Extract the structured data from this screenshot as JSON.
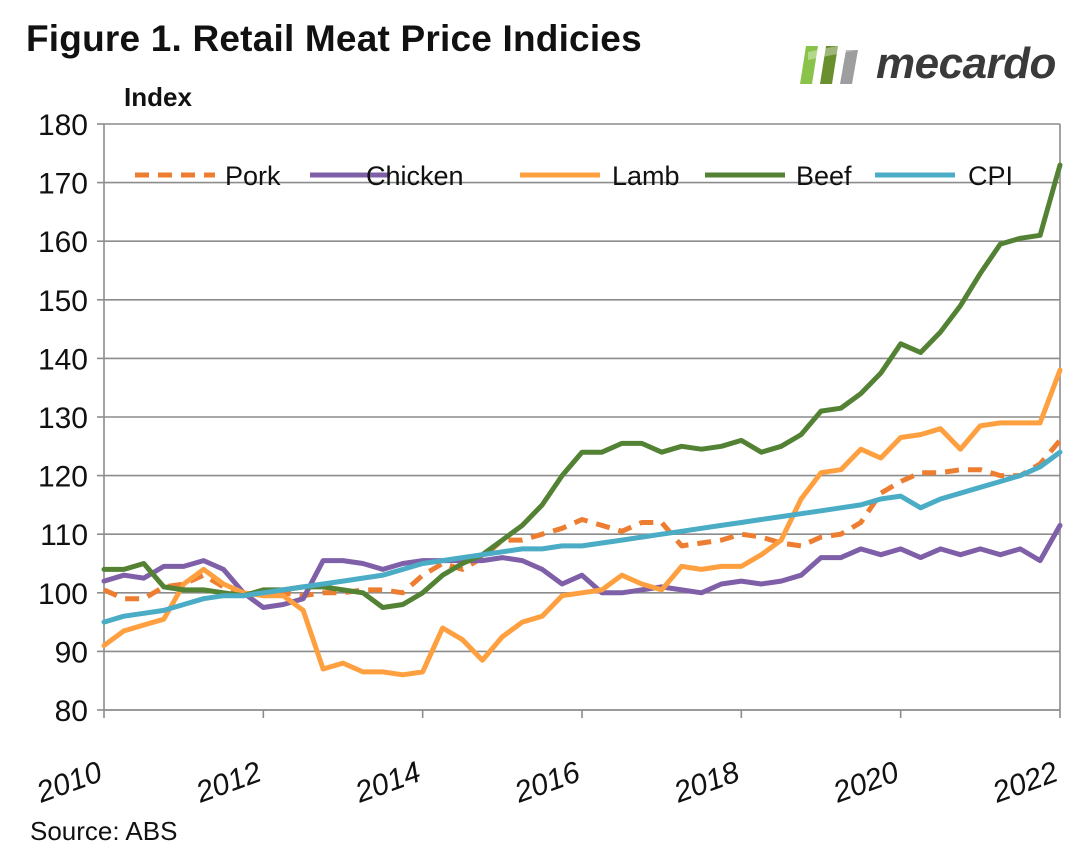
{
  "header": {
    "title": "Figure 1. Retail Meat Price Indicies"
  },
  "logo": {
    "text": "mecardo",
    "colors": [
      "#8bc34a",
      "#6a8f2f",
      "#9e9e9e"
    ]
  },
  "footer": {
    "source": "Source: ABS"
  },
  "chart_data": {
    "type": "line",
    "title": "Figure 1. Retail Meat Price Indicies",
    "ylabel": "Index",
    "xlabel": "",
    "ylim": [
      80,
      180
    ],
    "yticks": [
      "80",
      "90",
      "100",
      "110",
      "120",
      "130",
      "140",
      "150",
      "160",
      "170",
      "180"
    ],
    "xlim": [
      2010,
      2022
    ],
    "xticks": [
      "2010",
      "2012",
      "2014",
      "2016",
      "2018",
      "2020",
      "2022"
    ],
    "grid": "horizontal",
    "legend_position": "top",
    "series": [
      {
        "name": "Pork",
        "color": "#ed7d31",
        "dash": true,
        "x": [
          2010,
          2010.25,
          2010.5,
          2010.75,
          2011,
          2011.25,
          2011.5,
          2011.75,
          2012,
          2012.25,
          2012.5,
          2012.75,
          2013,
          2013.25,
          2013.5,
          2013.75,
          2014,
          2014.25,
          2014.5,
          2014.75,
          2015,
          2015.25,
          2015.5,
          2015.75,
          2016,
          2016.25,
          2016.5,
          2016.75,
          2017,
          2017.25,
          2017.5,
          2017.75,
          2018,
          2018.25,
          2018.5,
          2018.75,
          2019,
          2019.25,
          2019.5,
          2019.75,
          2020,
          2020.25,
          2020.5,
          2020.75,
          2021,
          2021.25,
          2021.5,
          2021.75,
          2022
        ],
        "values": [
          100.5,
          99,
          99,
          101,
          101.5,
          103,
          101,
          100,
          100,
          100,
          99.5,
          100,
          100,
          100.5,
          100.5,
          100,
          103,
          105,
          104,
          106,
          109,
          109,
          110,
          111,
          112.5,
          111.5,
          110.5,
          112,
          112,
          108,
          108.5,
          109,
          110,
          109.5,
          108.5,
          108,
          109.5,
          110,
          112,
          117,
          119,
          120.5,
          120.5,
          121,
          121,
          120,
          120,
          122,
          126
        ]
      },
      {
        "name": "Chicken",
        "color": "#7f60a8",
        "dash": false,
        "x": [
          2010,
          2010.25,
          2010.5,
          2010.75,
          2011,
          2011.25,
          2011.5,
          2011.75,
          2012,
          2012.25,
          2012.5,
          2012.75,
          2013,
          2013.25,
          2013.5,
          2013.75,
          2014,
          2014.25,
          2014.5,
          2014.75,
          2015,
          2015.25,
          2015.5,
          2015.75,
          2016,
          2016.25,
          2016.5,
          2016.75,
          2017,
          2017.25,
          2017.5,
          2017.75,
          2018,
          2018.25,
          2018.5,
          2018.75,
          2019,
          2019.25,
          2019.5,
          2019.75,
          2020,
          2020.25,
          2020.5,
          2020.75,
          2021,
          2021.25,
          2021.5,
          2021.75,
          2022
        ],
        "values": [
          102,
          103,
          102.5,
          104.5,
          104.5,
          105.5,
          104,
          100,
          97.5,
          98,
          99,
          105.5,
          105.5,
          105,
          104,
          105,
          105.5,
          105.5,
          105.5,
          105.5,
          106,
          105.5,
          104,
          101.5,
          103,
          100,
          100,
          100.5,
          101,
          100.5,
          100,
          101.5,
          102,
          101.5,
          102,
          103,
          106,
          106,
          107.5,
          106.5,
          107.5,
          106,
          107.5,
          106.5,
          107.5,
          106.5,
          107.5,
          105.5,
          111.5
        ]
      },
      {
        "name": "Lamb",
        "color": "#ffa040",
        "dash": false,
        "x": [
          2010,
          2010.25,
          2010.5,
          2010.75,
          2011,
          2011.25,
          2011.5,
          2011.75,
          2012,
          2012.25,
          2012.5,
          2012.75,
          2013,
          2013.25,
          2013.5,
          2013.75,
          2014,
          2014.25,
          2014.5,
          2014.75,
          2015,
          2015.25,
          2015.5,
          2015.75,
          2016,
          2016.25,
          2016.5,
          2016.75,
          2017,
          2017.25,
          2017.5,
          2017.75,
          2018,
          2018.25,
          2018.5,
          2018.75,
          2019,
          2019.25,
          2019.5,
          2019.75,
          2020,
          2020.25,
          2020.5,
          2020.75,
          2021,
          2021.25,
          2021.5,
          2021.75,
          2022
        ],
        "values": [
          91,
          93.5,
          94.5,
          95.5,
          101.5,
          104,
          101.5,
          100,
          99.5,
          99.5,
          97,
          87,
          88,
          86.5,
          86.5,
          86,
          86.5,
          94,
          92,
          88.5,
          92.5,
          95,
          96,
          99.5,
          100,
          100.5,
          103,
          101.5,
          100.5,
          104.5,
          104,
          104.5,
          104.5,
          106.5,
          109,
          116,
          120.5,
          121,
          124.5,
          123,
          126.5,
          127,
          128,
          124.5,
          128.5,
          129,
          129,
          129,
          138
        ]
      },
      {
        "name": "Beef",
        "color": "#548235",
        "dash": false,
        "x": [
          2010,
          2010.25,
          2010.5,
          2010.75,
          2011,
          2011.25,
          2011.5,
          2011.75,
          2012,
          2012.25,
          2012.5,
          2012.75,
          2013,
          2013.25,
          2013.5,
          2013.75,
          2014,
          2014.25,
          2014.5,
          2014.75,
          2015,
          2015.25,
          2015.5,
          2015.75,
          2016,
          2016.25,
          2016.5,
          2016.75,
          2017,
          2017.25,
          2017.5,
          2017.75,
          2018,
          2018.25,
          2018.5,
          2018.75,
          2019,
          2019.25,
          2019.5,
          2019.75,
          2020,
          2020.25,
          2020.5,
          2020.75,
          2021,
          2021.25,
          2021.5,
          2021.75,
          2022
        ],
        "values": [
          104,
          104,
          105,
          101,
          100.5,
          100.5,
          100,
          99.5,
          100.5,
          100.5,
          101,
          101,
          100.5,
          100,
          97.5,
          98,
          100,
          103,
          105,
          106.5,
          109,
          111.5,
          115,
          120,
          124,
          124,
          125.5,
          125.5,
          124,
          125,
          124.5,
          125,
          126,
          124,
          125,
          127,
          131,
          131.5,
          134,
          137.5,
          142.5,
          141,
          144.5,
          149,
          154.5,
          159.5,
          160.5,
          161,
          173
        ]
      },
      {
        "name": "CPI",
        "color": "#4bacc6",
        "dash": false,
        "x": [
          2010,
          2010.25,
          2010.5,
          2010.75,
          2011,
          2011.25,
          2011.5,
          2011.75,
          2012,
          2012.25,
          2012.5,
          2012.75,
          2013,
          2013.25,
          2013.5,
          2013.75,
          2014,
          2014.25,
          2014.5,
          2014.75,
          2015,
          2015.25,
          2015.5,
          2015.75,
          2016,
          2016.25,
          2016.5,
          2016.75,
          2017,
          2017.25,
          2017.5,
          2017.75,
          2018,
          2018.25,
          2018.5,
          2018.75,
          2019,
          2019.25,
          2019.5,
          2019.75,
          2020,
          2020.25,
          2020.5,
          2020.75,
          2021,
          2021.25,
          2021.5,
          2021.75,
          2022
        ],
        "values": [
          95,
          96,
          96.5,
          97,
          98,
          99,
          99.5,
          99.5,
          100,
          100.5,
          101,
          101.5,
          102,
          102.5,
          103,
          104,
          105,
          105.5,
          106,
          106.5,
          107,
          107.5,
          107.5,
          108,
          108,
          108.5,
          109,
          109.5,
          110,
          110.5,
          111,
          111.5,
          112,
          112.5,
          113,
          113.5,
          114,
          114.5,
          115,
          116,
          116.5,
          114.5,
          116,
          117,
          118,
          119,
          120,
          121.5,
          124
        ]
      }
    ]
  }
}
